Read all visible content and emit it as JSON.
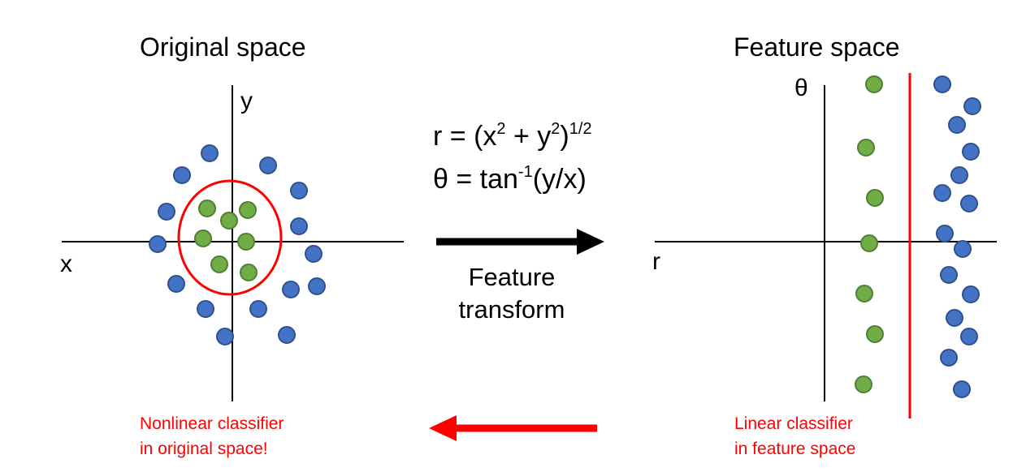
{
  "left_panel": {
    "title": "Original space",
    "x_label": "x",
    "y_label": "y",
    "note_line1": "Nonlinear classifier",
    "note_line2": "in original space!"
  },
  "right_panel": {
    "title": "Feature space",
    "r_label": "r",
    "theta_label": "θ",
    "note_line1": "Linear classifier",
    "note_line2": "in feature space"
  },
  "equations": {
    "r_lhs": "r = (x",
    "r_sq1": "2",
    "r_mid": " + y",
    "r_sq2": "2",
    "r_close": ")",
    "r_exp": "1/2",
    "theta_lhs": "θ = tan",
    "theta_exp": "-1",
    "theta_rhs": "(y/x)"
  },
  "transform_label_line1": "Feature",
  "transform_label_line2": "transform",
  "colors": {
    "blue_fill": "#4472c4",
    "blue_stroke": "#2f528f",
    "green_fill": "#70ad47",
    "green_stroke": "#507e32",
    "red": "#ff0000",
    "axis": "#000000"
  }
}
